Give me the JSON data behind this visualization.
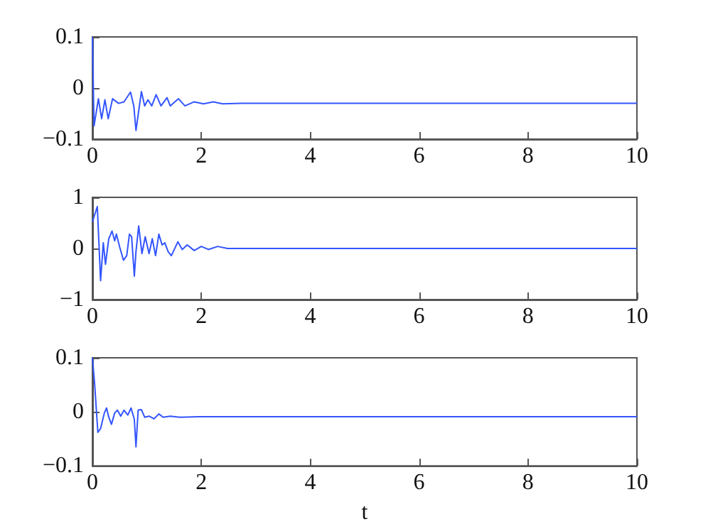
{
  "chart_data": [
    {
      "type": "line",
      "x": [
        0,
        0.03,
        0.11,
        0.17,
        0.23,
        0.29,
        0.37,
        0.48,
        0.58,
        0.7,
        0.76,
        0.8,
        0.9,
        0.96,
        1.02,
        1.09,
        1.17,
        1.26,
        1.37,
        1.43,
        1.58,
        1.7,
        1.87,
        2.04,
        2.22,
        2.39,
        2.74,
        10
      ],
      "series": [
        {
          "color": "#3355ff",
          "values": [
            0.1,
            -0.074,
            -0.021,
            -0.06,
            -0.023,
            -0.06,
            -0.021,
            -0.03,
            -0.027,
            -0.008,
            -0.035,
            -0.083,
            -0.007,
            -0.035,
            -0.023,
            -0.035,
            -0.013,
            -0.035,
            -0.019,
            -0.035,
            -0.021,
            -0.035,
            -0.027,
            -0.031,
            -0.027,
            -0.031,
            -0.03,
            -0.03
          ]
        }
      ],
      "xlim": [
        0,
        10
      ],
      "xticks": [
        0,
        2,
        4,
        6,
        8,
        10
      ],
      "ylim": [
        -0.1,
        0.1
      ],
      "yticks": [
        -0.1,
        0,
        0.1
      ],
      "grid": false,
      "marker": "none",
      "line_style": "solid"
    },
    {
      "type": "line",
      "x": [
        0,
        0.09,
        0.15,
        0.2,
        0.24,
        0.3,
        0.36,
        0.41,
        0.44,
        0.5,
        0.57,
        0.63,
        0.68,
        0.72,
        0.77,
        0.8,
        0.85,
        0.91,
        0.97,
        1.04,
        1.1,
        1.16,
        1.22,
        1.28,
        1.33,
        1.39,
        1.45,
        1.57,
        1.65,
        1.74,
        1.87,
        2,
        2.13,
        2.3,
        2.48,
        10
      ],
      "series": [
        {
          "color": "#3355ff",
          "values": [
            0.52,
            0.82,
            -0.63,
            0.11,
            -0.31,
            0.19,
            0.34,
            0.15,
            0.28,
            0.03,
            -0.23,
            -0.14,
            0.28,
            0.23,
            -0.54,
            -0.06,
            0.44,
            -0.1,
            0.23,
            -0.1,
            0.19,
            -0.14,
            0.28,
            0.07,
            0.11,
            -0.06,
            -0.14,
            0.13,
            -0.02,
            0.07,
            -0.04,
            0.04,
            -0.02,
            0.04,
            0,
            0
          ]
        }
      ],
      "xlim": [
        0,
        10
      ],
      "xticks": [
        0,
        2,
        4,
        6,
        8,
        10
      ],
      "ylim": [
        -1,
        1
      ],
      "yticks": [
        -1,
        0,
        1
      ],
      "grid": false,
      "marker": "none",
      "line_style": "solid"
    },
    {
      "type": "line",
      "xlabel": "t",
      "x": [
        0,
        0.04,
        0.1,
        0.15,
        0.22,
        0.26,
        0.3,
        0.35,
        0.41,
        0.46,
        0.52,
        0.58,
        0.65,
        0.71,
        0.77,
        0.8,
        0.84,
        0.9,
        0.96,
        1.04,
        1.13,
        1.22,
        1.3,
        1.43,
        1.6,
        1.95,
        10
      ],
      "series": [
        {
          "color": "#3355ff",
          "values": [
            0.1,
            0.053,
            -0.038,
            -0.031,
            -0.002,
            0.007,
            -0.01,
            -0.023,
            -0.002,
            0.003,
            -0.008,
            0.003,
            -0.006,
            0.007,
            -0.014,
            -0.065,
            0.003,
            0.004,
            -0.01,
            -0.008,
            -0.013,
            -0.004,
            -0.01,
            -0.008,
            -0.01,
            -0.009,
            -0.009
          ]
        }
      ],
      "xlim": [
        0,
        10
      ],
      "xticks": [
        0,
        2,
        4,
        6,
        8,
        10
      ],
      "ylim": [
        -0.1,
        0.1
      ],
      "yticks": [
        -0.1,
        0,
        0.1
      ],
      "grid": false,
      "marker": "none",
      "line_style": "solid"
    }
  ]
}
